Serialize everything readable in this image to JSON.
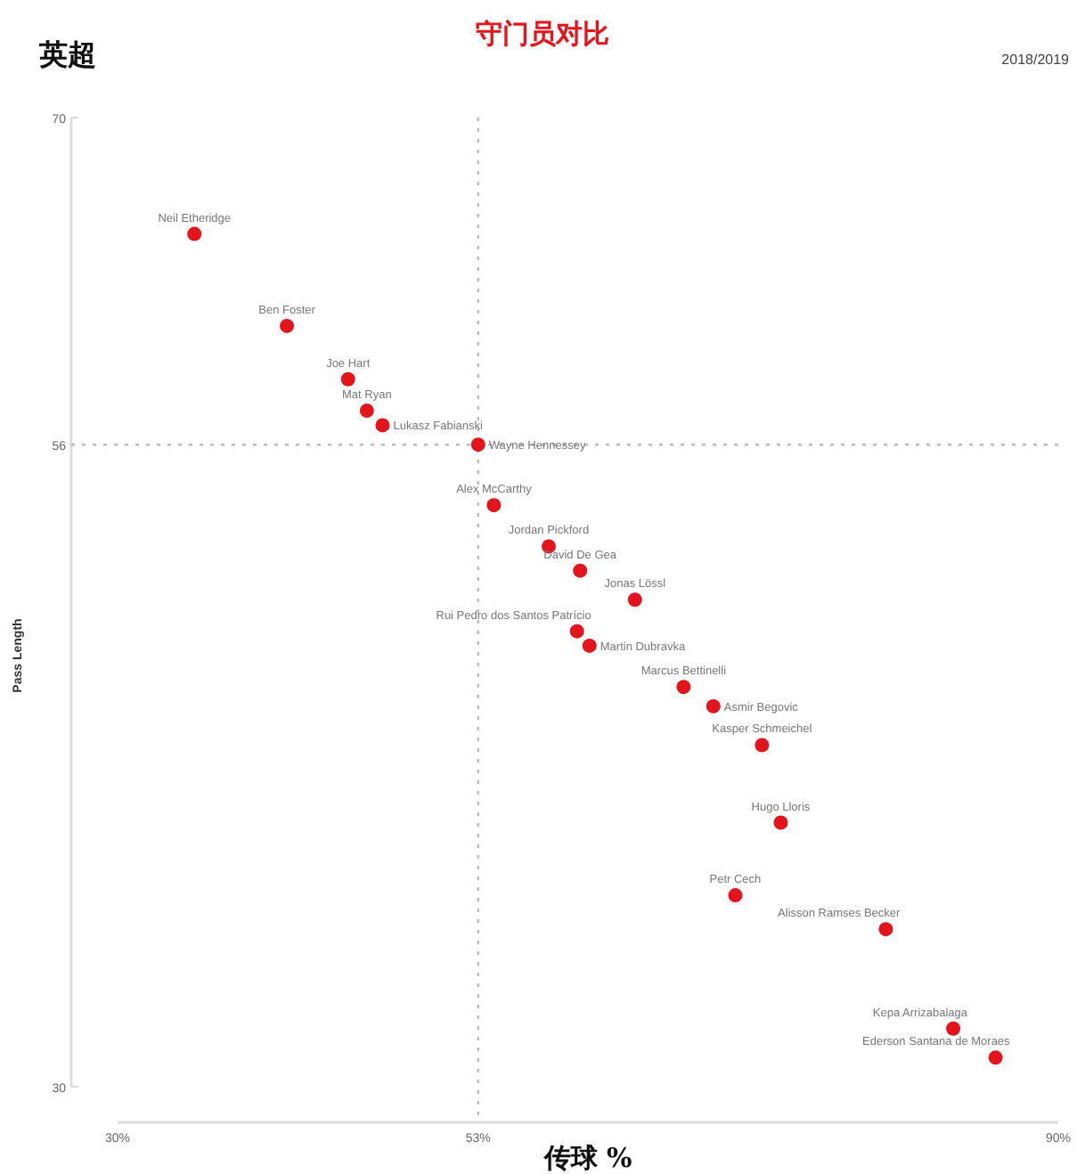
{
  "chart_data": {
    "type": "scatter",
    "title": "守门员对比",
    "subtitle": "英超",
    "xlabel": "传球 %",
    "ylabel": "Pass Length",
    "xlim": [
      30,
      90
    ],
    "xticks": [
      {
        "value": 30,
        "label": "30%"
      },
      {
        "value": 90,
        "label": "90%"
      }
    ],
    "ylim": [
      30,
      70
    ],
    "yticks": [
      30,
      70
    ],
    "ref_lines": [
      {
        "axis": "x",
        "value": 53,
        "label": "53%",
        "line_style": "dotted"
      },
      {
        "axis": "y",
        "value": 56.5,
        "label": "56",
        "line_style": "dotted"
      }
    ],
    "grid": false,
    "marker": "circle",
    "series": [
      {
        "color": "#e3141c",
        "x": [
          34.9,
          40.8,
          44.7,
          45.9,
          46.9,
          53.0,
          54.0,
          57.5,
          59.5,
          63.0,
          59.3,
          60.1,
          66.1,
          68.0,
          71.1,
          72.3,
          69.4,
          79.0,
          83.3,
          86.0
        ],
        "values": [
          65.2,
          61.4,
          59.2,
          57.9,
          57.3,
          56.5,
          54.0,
          52.3,
          51.3,
          50.1,
          48.8,
          48.2,
          46.5,
          45.7,
          44.1,
          40.9,
          37.9,
          36.5,
          32.4,
          31.2
        ]
      }
    ],
    "annotations": [
      "2018/2019",
      {
        "text": "Neil Etheridge",
        "x": 34.9,
        "y": 65.2
      },
      {
        "text": "Ben Foster",
        "x": 40.8,
        "y": 61.4
      },
      {
        "text": "Joe Hart",
        "x": 44.7,
        "y": 59.2
      },
      {
        "text": "Mat Ryan",
        "x": 45.9,
        "y": 57.9
      },
      {
        "text": "Lukasz Fabianski",
        "x": 46.9,
        "y": 57.3
      },
      {
        "text": "Wayne Hennessey",
        "x": 53.0,
        "y": 56.5
      },
      {
        "text": "Alex McCarthy",
        "x": 54.0,
        "y": 54.0
      },
      {
        "text": "Jordan Pickford",
        "x": 57.5,
        "y": 52.3
      },
      {
        "text": "David De Gea",
        "x": 59.5,
        "y": 51.3
      },
      {
        "text": "Jonas Lössl",
        "x": 63.0,
        "y": 50.1
      },
      {
        "text": "Rui Pedro dos Santos Patrício",
        "x": 59.3,
        "y": 48.8
      },
      {
        "text": "Martin Dubravka",
        "x": 60.1,
        "y": 48.2
      },
      {
        "text": "Marcus Bettinelli",
        "x": 66.1,
        "y": 46.5
      },
      {
        "text": "Asmir Begovic",
        "x": 68.0,
        "y": 45.7
      },
      {
        "text": "Kasper Schmeichel",
        "x": 71.1,
        "y": 44.1
      },
      {
        "text": "Hugo Lloris",
        "x": 72.3,
        "y": 40.9
      },
      {
        "text": "Petr Cech",
        "x": 69.4,
        "y": 37.9
      },
      {
        "text": "Alisson Ramses Becker",
        "x": 79.0,
        "y": 36.5
      },
      {
        "text": "Kepa Arrizabalaga",
        "x": 83.3,
        "y": 32.4
      },
      {
        "text": "Ederson Santana de Moraes",
        "x": 86.0,
        "y": 31.2
      }
    ]
  }
}
